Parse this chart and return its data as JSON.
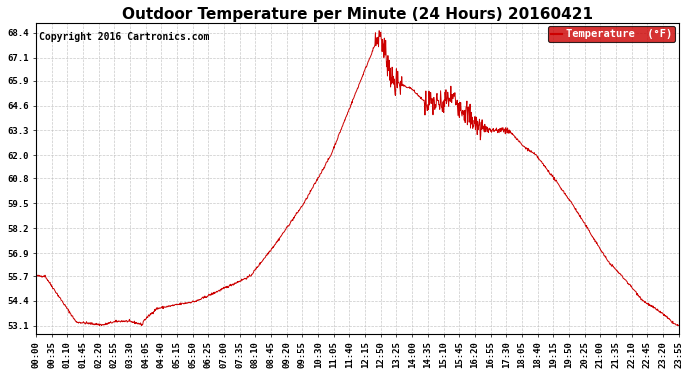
{
  "title": "Outdoor Temperature per Minute (24 Hours) 20160421",
  "copyright": "Copyright 2016 Cartronics.com",
  "legend_label": "Temperature  (°F)",
  "legend_bg": "#cc0000",
  "legend_text_color": "#ffffff",
  "line_color": "#cc0000",
  "bg_color": "#ffffff",
  "grid_color": "#bbbbbb",
  "y_ticks": [
    53.1,
    54.4,
    55.7,
    56.9,
    58.2,
    59.5,
    60.8,
    62.0,
    63.3,
    64.6,
    65.9,
    67.1,
    68.4
  ],
  "ylim": [
    52.7,
    68.9
  ],
  "x_tick_labels": [
    "00:00",
    "00:35",
    "01:10",
    "01:45",
    "02:20",
    "02:55",
    "03:30",
    "04:05",
    "04:40",
    "05:15",
    "05:50",
    "06:25",
    "07:00",
    "07:35",
    "08:10",
    "08:45",
    "09:20",
    "09:55",
    "10:30",
    "11:05",
    "11:40",
    "12:15",
    "12:50",
    "13:25",
    "14:00",
    "14:35",
    "15:10",
    "15:45",
    "16:20",
    "16:55",
    "17:30",
    "18:05",
    "18:40",
    "19:15",
    "19:50",
    "20:25",
    "21:00",
    "21:35",
    "22:10",
    "22:45",
    "23:20",
    "23:55"
  ],
  "title_fontsize": 11,
  "tick_fontsize": 6.5,
  "copyright_fontsize": 7
}
